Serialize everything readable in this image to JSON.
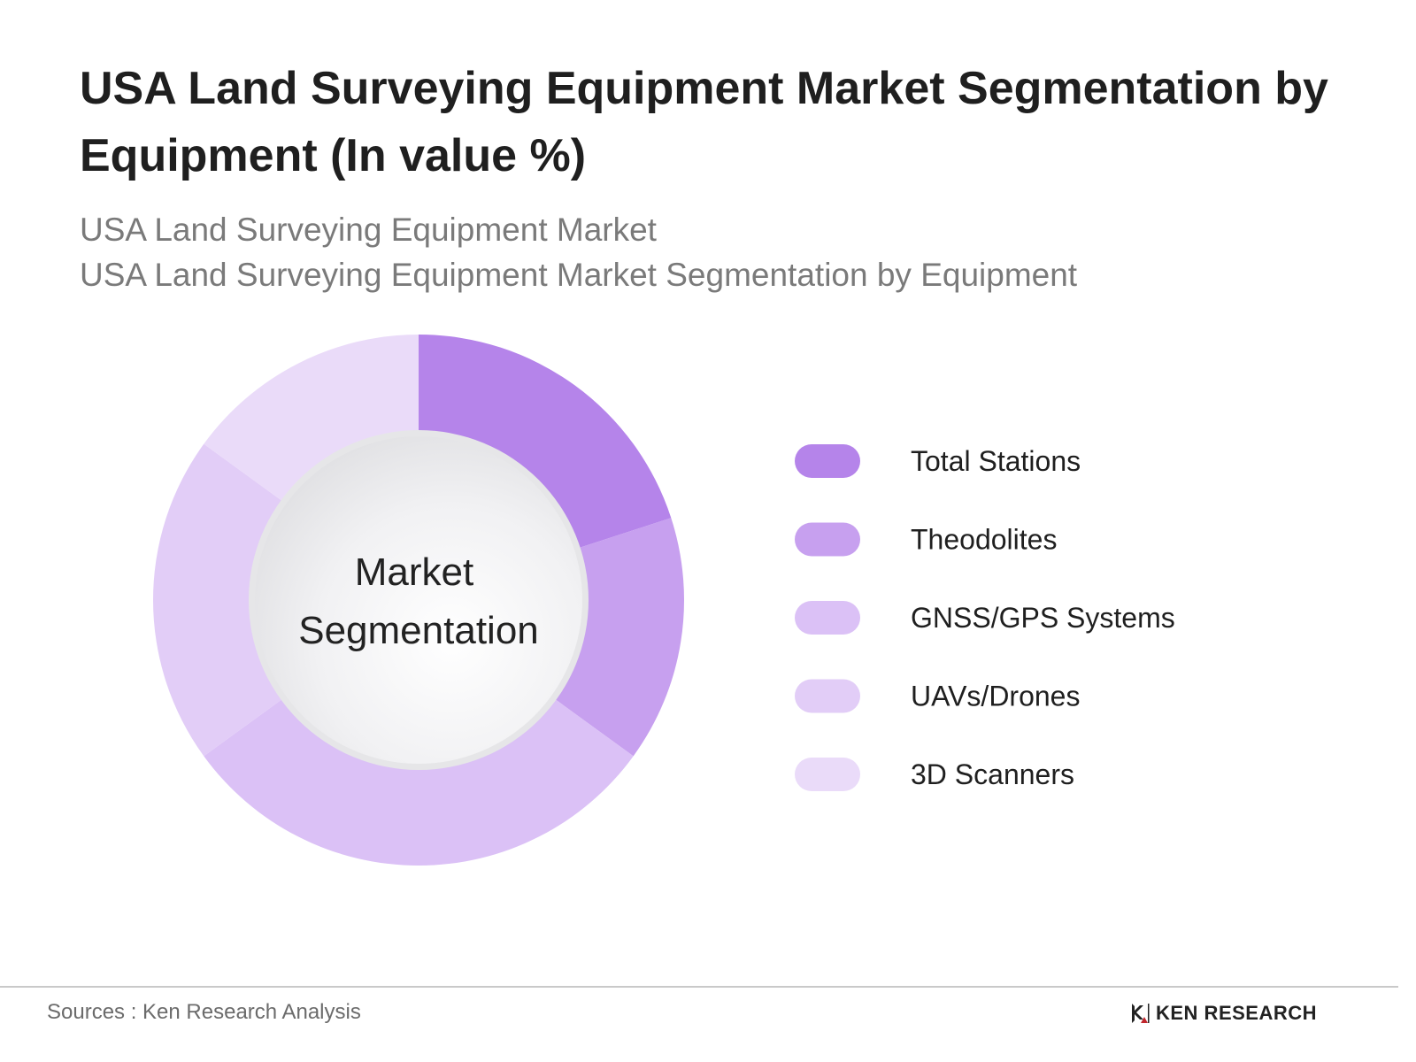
{
  "title": "USA Land Surveying Equipment Market Segmentation by Equipment (In value %)",
  "subtitle_1": "USA Land Surveying Equipment Market",
  "subtitle_2": "USA Land Surveying Equipment Market Segmentation by Equipment",
  "chart_data": {
    "type": "pie",
    "variant": "donut",
    "center_label_lines": [
      "Market",
      "Segmentation"
    ],
    "categories": [
      "Total Stations",
      "Theodolites",
      "GNSS/GPS Systems",
      "UAVs/Drones",
      "3D Scanners"
    ],
    "values": [
      20,
      15,
      30,
      20,
      15
    ],
    "colors": [
      "#b584ea",
      "#c7a0ef",
      "#dbc1f6",
      "#e2cdf7",
      "#eadbf9"
    ],
    "legend_position": "right"
  },
  "footer": {
    "sources": "Sources : Ken Research Analysis",
    "brand": "KEN RESEARCH",
    "brand_icon": "ken-research-logo-icon"
  }
}
